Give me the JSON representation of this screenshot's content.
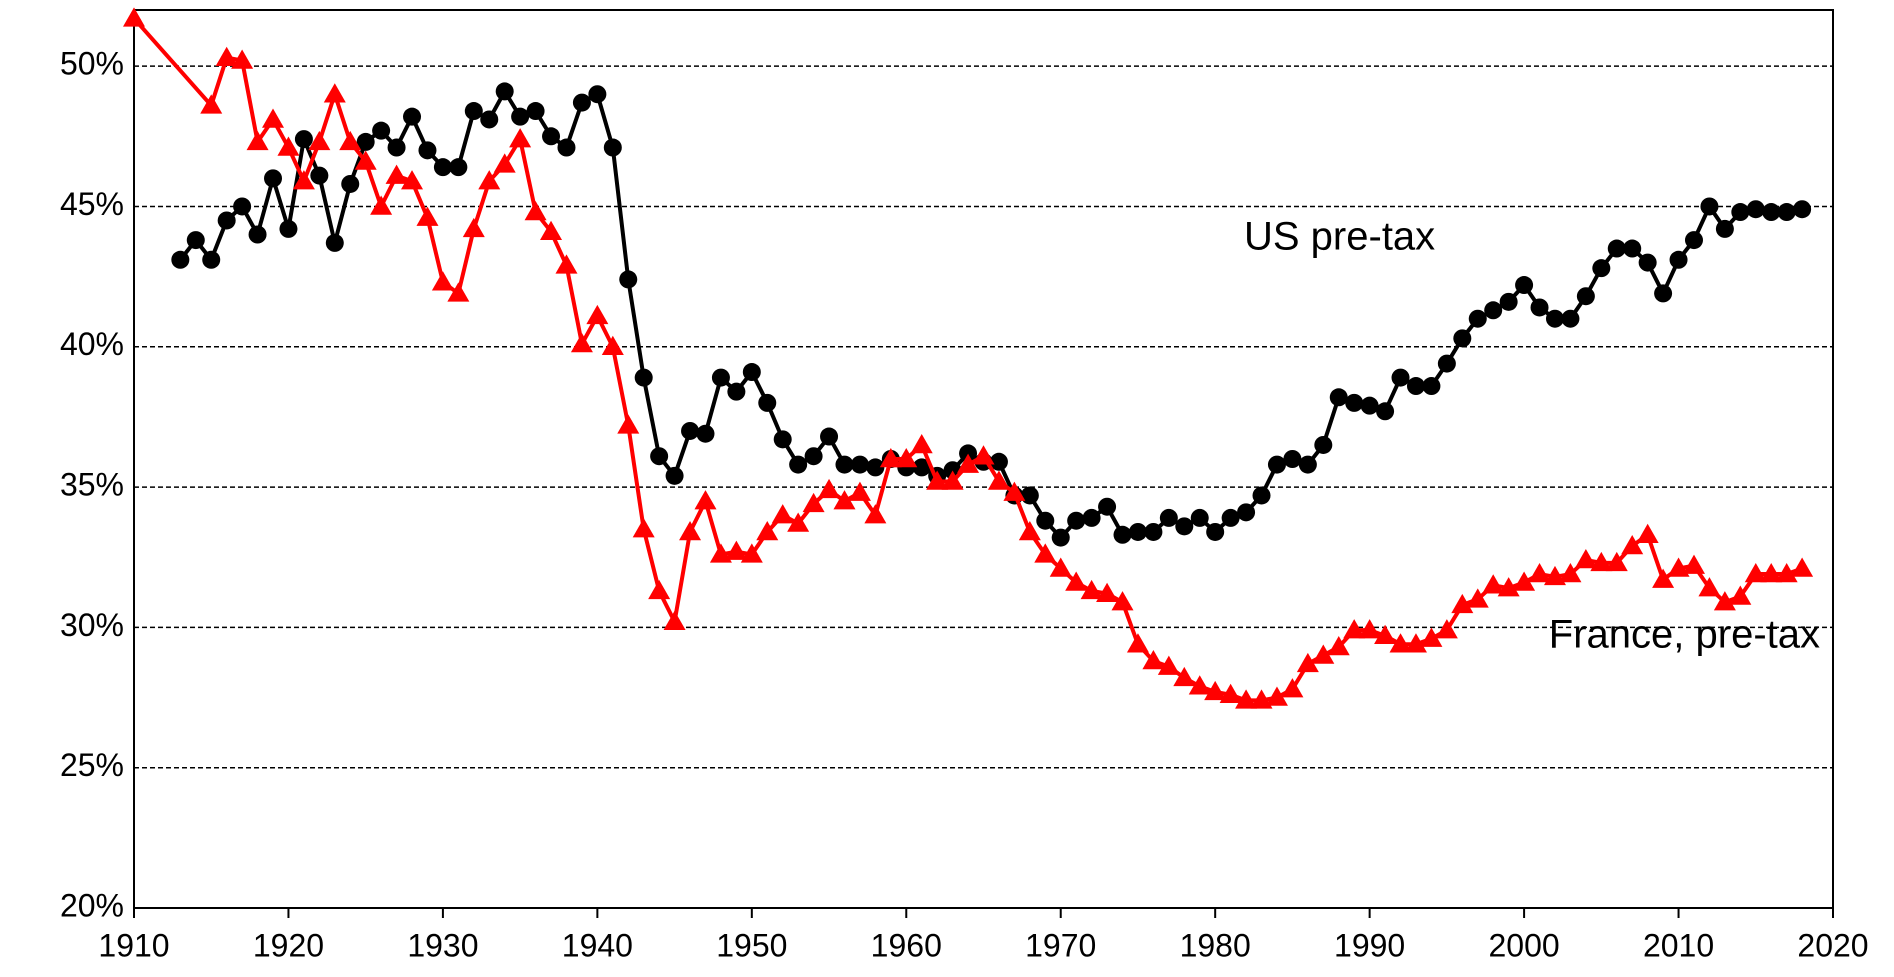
{
  "chart_data": {
    "type": "line",
    "xlim": [
      1910,
      2020
    ],
    "xticks": [
      1910,
      1920,
      1930,
      1940,
      1950,
      1960,
      1970,
      1980,
      1990,
      2000,
      2010,
      2020
    ],
    "ylim": [
      20,
      52
    ],
    "yticks": [
      {
        "value": 20,
        "label": "20%"
      },
      {
        "value": 25,
        "label": "25%"
      },
      {
        "value": 30,
        "label": "30%"
      },
      {
        "value": 35,
        "label": "35%"
      },
      {
        "value": 40,
        "label": "40%"
      },
      {
        "value": 45,
        "label": "45%"
      },
      {
        "value": 50,
        "label": "50%"
      }
    ],
    "grid": true,
    "series": [
      {
        "name": "US pre-tax",
        "color": "#000000",
        "marker": "circle",
        "x": [
          1913,
          1914,
          1915,
          1916,
          1917,
          1918,
          1919,
          1920,
          1921,
          1922,
          1923,
          1924,
          1925,
          1926,
          1927,
          1928,
          1929,
          1930,
          1931,
          1932,
          1933,
          1934,
          1935,
          1936,
          1937,
          1938,
          1939,
          1940,
          1941,
          1942,
          1943,
          1944,
          1945,
          1946,
          1947,
          1948,
          1949,
          1950,
          1951,
          1952,
          1953,
          1954,
          1955,
          1956,
          1957,
          1958,
          1959,
          1960,
          1961,
          1962,
          1963,
          1964,
          1965,
          1966,
          1967,
          1968,
          1969,
          1970,
          1971,
          1972,
          1973,
          1974,
          1975,
          1976,
          1977,
          1978,
          1979,
          1980,
          1981,
          1982,
          1983,
          1984,
          1985,
          1986,
          1987,
          1988,
          1989,
          1990,
          1991,
          1992,
          1993,
          1994,
          1995,
          1996,
          1997,
          1998,
          1999,
          2000,
          2001,
          2002,
          2003,
          2004,
          2005,
          2006,
          2007,
          2008,
          2009,
          2010,
          2011,
          2012,
          2013,
          2014,
          2015,
          2016,
          2017,
          2018
        ],
        "values": [
          43.1,
          43.8,
          43.1,
          44.5,
          45.0,
          44.0,
          46.0,
          44.2,
          47.4,
          46.1,
          43.7,
          45.8,
          47.3,
          47.7,
          47.1,
          48.2,
          47.0,
          46.4,
          46.4,
          48.4,
          48.1,
          49.1,
          48.2,
          48.4,
          47.5,
          47.1,
          48.7,
          49.0,
          47.1,
          42.4,
          38.9,
          36.1,
          35.4,
          37.0,
          36.9,
          38.9,
          38.4,
          39.1,
          38.0,
          36.7,
          35.8,
          36.1,
          36.8,
          35.8,
          35.8,
          35.7,
          36.0,
          35.7,
          35.7,
          35.4,
          35.6,
          36.2,
          35.9,
          35.9,
          34.7,
          34.7,
          33.8,
          33.2,
          33.8,
          33.9,
          34.3,
          33.3,
          33.4,
          33.4,
          33.9,
          33.6,
          33.9,
          33.4,
          33.9,
          34.1,
          34.7,
          35.8,
          36.0,
          35.8,
          36.5,
          38.2,
          38.0,
          37.9,
          37.7,
          38.9,
          38.6,
          38.6,
          39.4,
          40.3,
          41.0,
          41.3,
          41.6,
          42.2,
          41.4,
          41.0,
          41.0,
          41.8,
          42.8,
          43.5,
          43.5,
          43.0,
          41.9,
          43.1,
          43.8,
          45.0,
          44.2,
          44.8,
          44.9,
          44.8,
          44.8,
          44.9
        ]
      },
      {
        "name": "France, pre-tax",
        "color": "#ff0000",
        "marker": "triangle",
        "x": [
          1910,
          1915,
          1916,
          1917,
          1918,
          1919,
          1920,
          1921,
          1922,
          1923,
          1924,
          1925,
          1926,
          1927,
          1928,
          1929,
          1930,
          1931,
          1932,
          1933,
          1934,
          1935,
          1936,
          1937,
          1938,
          1939,
          1940,
          1941,
          1942,
          1943,
          1944,
          1945,
          1946,
          1947,
          1948,
          1949,
          1950,
          1951,
          1952,
          1953,
          1954,
          1955,
          1956,
          1957,
          1958,
          1959,
          1960,
          1961,
          1962,
          1963,
          1964,
          1965,
          1966,
          1967,
          1968,
          1969,
          1970,
          1971,
          1972,
          1973,
          1974,
          1975,
          1976,
          1977,
          1978,
          1979,
          1980,
          1981,
          1982,
          1983,
          1984,
          1985,
          1986,
          1987,
          1988,
          1989,
          1990,
          1991,
          1992,
          1993,
          1994,
          1995,
          1996,
          1997,
          1998,
          1999,
          2000,
          2001,
          2002,
          2003,
          2004,
          2005,
          2006,
          2007,
          2008,
          2009,
          2010,
          2011,
          2012,
          2013,
          2014,
          2015,
          2016,
          2017,
          2018
        ],
        "values": [
          51.7,
          48.6,
          50.3,
          50.2,
          47.3,
          48.1,
          47.1,
          45.9,
          47.3,
          49.0,
          47.3,
          46.6,
          45.0,
          46.1,
          45.9,
          44.6,
          42.3,
          41.9,
          44.2,
          45.9,
          46.5,
          47.4,
          44.8,
          44.1,
          42.9,
          40.1,
          41.1,
          40.0,
          37.2,
          33.5,
          31.3,
          30.2,
          33.4,
          34.5,
          32.6,
          32.7,
          32.6,
          33.4,
          34.0,
          33.7,
          34.4,
          34.9,
          34.5,
          34.8,
          34.0,
          36.0,
          36.0,
          36.5,
          35.2,
          35.2,
          35.8,
          36.1,
          35.2,
          34.8,
          33.4,
          32.6,
          32.1,
          31.6,
          31.3,
          31.2,
          30.9,
          29.4,
          28.8,
          28.6,
          28.2,
          27.9,
          27.7,
          27.6,
          27.4,
          27.4,
          27.5,
          27.8,
          28.7,
          29.0,
          29.3,
          29.9,
          29.9,
          29.7,
          29.4,
          29.4,
          29.6,
          29.9,
          30.8,
          31.0,
          31.5,
          31.4,
          31.6,
          31.9,
          31.8,
          31.9,
          32.4,
          32.3,
          32.3,
          32.9,
          33.3,
          31.7,
          32.1,
          32.2,
          31.4,
          30.9,
          31.1,
          31.9,
          31.9,
          31.9,
          32.1
        ]
      }
    ]
  }
}
